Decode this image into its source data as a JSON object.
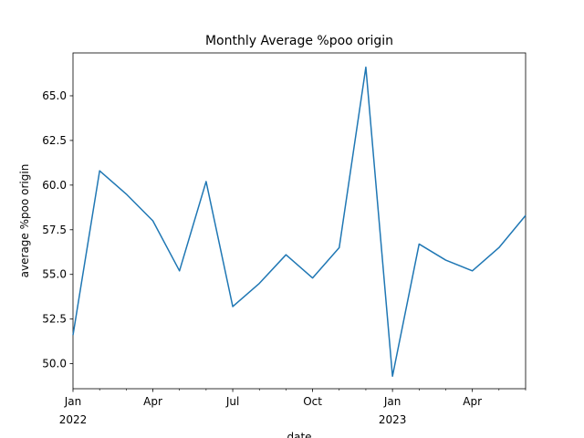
{
  "chart_data": {
    "type": "line",
    "title": "Monthly Average %poo origin",
    "xlabel": "date",
    "ylabel": "average %poo origin",
    "x": [
      "2022-01",
      "2022-02",
      "2022-03",
      "2022-04",
      "2022-05",
      "2022-06",
      "2022-07",
      "2022-08",
      "2022-09",
      "2022-10",
      "2022-11",
      "2022-12",
      "2023-01",
      "2023-02",
      "2023-03",
      "2023-04",
      "2023-05",
      "2023-06"
    ],
    "series": [
      {
        "values": [
          51.6,
          60.8,
          59.5,
          58.0,
          55.2,
          60.2,
          53.2,
          54.5,
          56.1,
          54.8,
          56.5,
          66.6,
          49.3,
          56.7,
          55.8,
          55.2,
          56.5,
          58.3
        ],
        "color": "#1f77b4"
      }
    ],
    "ylim": [
      48.6,
      67.4
    ],
    "yticks": [
      {
        "value": 50.0,
        "label": "50.0"
      },
      {
        "value": 52.5,
        "label": "52.5"
      },
      {
        "value": 55.0,
        "label": "55.0"
      },
      {
        "value": 57.5,
        "label": "57.5"
      },
      {
        "value": 60.0,
        "label": "60.0"
      },
      {
        "value": 62.5,
        "label": "62.5"
      },
      {
        "value": 65.0,
        "label": "65.0"
      }
    ],
    "xticks_major": [
      {
        "index": 0,
        "label": "Jan",
        "sublabel": "2022"
      },
      {
        "index": 3,
        "label": "Apr",
        "sublabel": ""
      },
      {
        "index": 6,
        "label": "Jul",
        "sublabel": ""
      },
      {
        "index": 9,
        "label": "Oct",
        "sublabel": ""
      },
      {
        "index": 12,
        "label": "Jan",
        "sublabel": "2023"
      },
      {
        "index": 15,
        "label": "Apr",
        "sublabel": ""
      }
    ],
    "grid": false,
    "legend": "none"
  }
}
